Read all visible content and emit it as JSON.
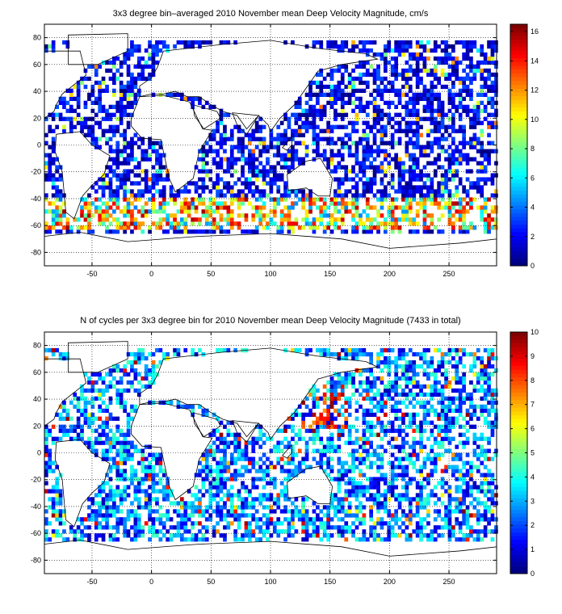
{
  "chart_data": [
    {
      "type": "heatmap",
      "title": "3x3 degree bin–averaged 2010 November mean Deep Velocity Magnitude, cm/s",
      "xlim": [
        -90,
        290
      ],
      "ylim": [
        -90,
        90
      ],
      "xticks": [
        -50,
        0,
        50,
        100,
        150,
        200,
        250
      ],
      "yticks": [
        80,
        60,
        40,
        20,
        0,
        -20,
        -40,
        -60,
        -80
      ],
      "grid": true,
      "colorbar": {
        "range": [
          0,
          16.5
        ],
        "ticks": [
          0,
          2,
          4,
          6,
          8,
          10,
          12,
          14,
          16
        ],
        "colormap": "jet"
      },
      "bin_size_deg": 3,
      "value_summary": "mostly 0-4 cm/s (blue) worldwide; high values 8-16 cm/s (yellow to dark red) along the Antarctic Circumpolar Current band near 40-60S and in western boundary currents"
    },
    {
      "type": "heatmap",
      "title": "N of cycles per 3x3 degree bin for 2010 November mean Deep Velocity Magnitude (7433 in total)",
      "xlim": [
        -90,
        290
      ],
      "ylim": [
        -90,
        90
      ],
      "xticks": [
        -50,
        0,
        50,
        100,
        150,
        200,
        250
      ],
      "yticks": [
        80,
        60,
        40,
        20,
        0,
        -20,
        -40,
        -60,
        -80
      ],
      "grid": true,
      "colorbar": {
        "range": [
          0,
          10
        ],
        "ticks": [
          0,
          1,
          2,
          3,
          4,
          5,
          6,
          7,
          8,
          9,
          10
        ],
        "colormap": "jet"
      },
      "bin_size_deg": 3,
      "total_cycles": 7433,
      "value_summary": "mostly 1-4 cycles per bin (cyan/blue); higher counts 7-10 (red) in the western North Pacific near 20-40N 130-150E"
    }
  ]
}
